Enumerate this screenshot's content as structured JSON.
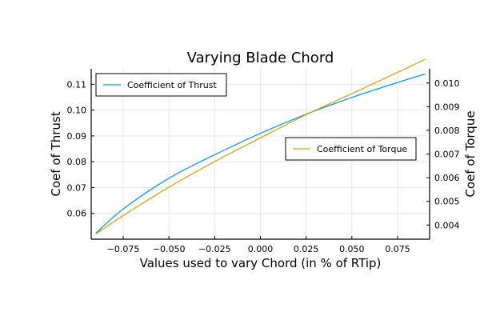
{
  "chart_data": {
    "type": "line",
    "title": "Varying Blade Chord",
    "xlabel": "Values used to vary Chord (in % of RTip)",
    "ylabel_left": "Coef of Thrust",
    "ylabel_right": "Coef of Torque",
    "xlim": [
      -0.0925,
      0.0925
    ],
    "ylim_left": [
      0.05,
      0.116
    ],
    "ylim_right": [
      0.0034,
      0.0106
    ],
    "x_ticks": [
      -0.075,
      -0.05,
      -0.025,
      0.0,
      0.025,
      0.05,
      0.075
    ],
    "x_tick_labels": [
      "−0.075",
      "−0.050",
      "−0.025",
      "0.000",
      "0.025",
      "0.050",
      "0.075"
    ],
    "y_left_ticks": [
      0.06,
      0.07,
      0.08,
      0.09,
      0.1,
      0.11
    ],
    "y_left_tick_labels": [
      "0.06",
      "0.07",
      "0.08",
      "0.09",
      "0.10",
      "0.11"
    ],
    "y_right_ticks": [
      0.004,
      0.005,
      0.006,
      0.007,
      0.008,
      0.009,
      0.01
    ],
    "y_right_tick_labels": [
      "0.004",
      "0.005",
      "0.006",
      "0.007",
      "0.008",
      "0.009",
      "0.010"
    ],
    "grid": true,
    "series": [
      {
        "name": "Coefficient of Thrust",
        "axis": "left",
        "color": "#009af9",
        "legend_position": "top-left",
        "x": [
          -0.09,
          -0.075,
          -0.05,
          -0.025,
          0.0,
          0.025,
          0.05,
          0.075,
          0.09
        ],
        "y": [
          0.0523,
          0.0617,
          0.0736,
          0.0827,
          0.091,
          0.0984,
          0.1049,
          0.1107,
          0.114
        ]
      },
      {
        "name": "Coefficient of Torque",
        "axis": "right",
        "color": "#e69f00",
        "legend_position": "center-right",
        "x": [
          -0.09,
          -0.075,
          -0.05,
          -0.025,
          0.0,
          0.025,
          0.05,
          0.075,
          0.09
        ],
        "y": [
          0.00362,
          0.0044,
          0.0056,
          0.00668,
          0.00768,
          0.00866,
          0.00955,
          0.01045,
          0.011
        ]
      }
    ]
  }
}
